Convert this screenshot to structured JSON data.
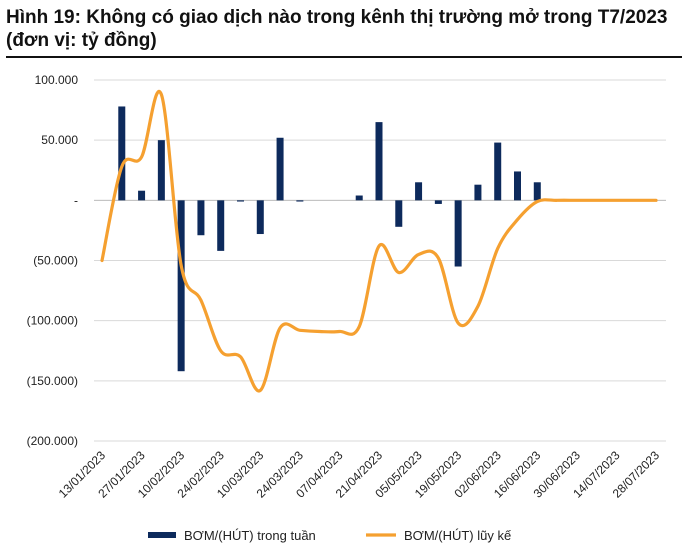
{
  "title": "Hình 19: Không có giao dịch nào trong kênh thị trường mở trong T7/2023 (đơn vị: tỷ đồng)",
  "chart_data": {
    "type": "bar+line",
    "ylim": [
      -200000,
      100000
    ],
    "y_ticks": [
      {
        "value": 100000,
        "label": "100.000"
      },
      {
        "value": 50000,
        "label": "50.000"
      },
      {
        "value": 0,
        "label": "-"
      },
      {
        "value": -50000,
        "label": "(50.000)"
      },
      {
        "value": -100000,
        "label": "(100.000)"
      },
      {
        "value": -150000,
        "label": "(150.000)"
      },
      {
        "value": -200000,
        "label": "(200.000)"
      }
    ],
    "x_ticks": [
      "13/01/2023",
      "27/01/2023",
      "10/02/2023",
      "24/02/2023",
      "10/03/2023",
      "24/03/2023",
      "07/04/2023",
      "21/04/2023",
      "05/05/2023",
      "19/05/2023",
      "02/06/2023",
      "16/06/2023",
      "30/06/2023",
      "14/07/2023",
      "28/07/2023"
    ],
    "grid": true,
    "legend_position": "bottom",
    "series": [
      {
        "name": "BƠM/(HÚT) trong tuần",
        "type": "bar",
        "color": "#0d2a5c",
        "points": [
          {
            "x": "20/01/2023",
            "y": 78000
          },
          {
            "x": "27/01/2023",
            "y": 8000
          },
          {
            "x": "03/02/2023",
            "y": 50000
          },
          {
            "x": "10/02/2023",
            "y": -142000
          },
          {
            "x": "17/02/2023",
            "y": -29000
          },
          {
            "x": "24/02/2023",
            "y": -42000
          },
          {
            "x": "03/03/2023",
            "y": -1000
          },
          {
            "x": "10/03/2023",
            "y": -28000
          },
          {
            "x": "17/03/2023",
            "y": 52000
          },
          {
            "x": "24/03/2023",
            "y": -1000
          },
          {
            "x": "14/04/2023",
            "y": 4000
          },
          {
            "x": "21/04/2023",
            "y": 65000
          },
          {
            "x": "28/04/2023",
            "y": -22000
          },
          {
            "x": "05/05/2023",
            "y": 15000
          },
          {
            "x": "12/05/2023",
            "y": -3000
          },
          {
            "x": "19/05/2023",
            "y": -55000
          },
          {
            "x": "26/05/2023",
            "y": 13000
          },
          {
            "x": "02/06/2023",
            "y": 48000
          },
          {
            "x": "09/06/2023",
            "y": 24000
          },
          {
            "x": "16/06/2023",
            "y": 15000
          }
        ]
      },
      {
        "name": "BƠM/(HÚT) lũy kế",
        "type": "line",
        "color": "#f5a030",
        "points": [
          {
            "x": "13/01/2023",
            "y": -50000
          },
          {
            "x": "20/01/2023",
            "y": 28000
          },
          {
            "x": "27/01/2023",
            "y": 36000
          },
          {
            "x": "03/02/2023",
            "y": 88000
          },
          {
            "x": "10/02/2023",
            "y": -54000
          },
          {
            "x": "17/02/2023",
            "y": -83000
          },
          {
            "x": "24/02/2023",
            "y": -125000
          },
          {
            "x": "03/03/2023",
            "y": -130000
          },
          {
            "x": "10/03/2023",
            "y": -158000
          },
          {
            "x": "17/03/2023",
            "y": -106000
          },
          {
            "x": "24/03/2023",
            "y": -108000
          },
          {
            "x": "31/03/2023",
            "y": -109000
          },
          {
            "x": "07/04/2023",
            "y": -109000
          },
          {
            "x": "14/04/2023",
            "y": -105000
          },
          {
            "x": "21/04/2023",
            "y": -38000
          },
          {
            "x": "28/04/2023",
            "y": -60000
          },
          {
            "x": "05/05/2023",
            "y": -45000
          },
          {
            "x": "12/05/2023",
            "y": -48000
          },
          {
            "x": "19/05/2023",
            "y": -102000
          },
          {
            "x": "26/05/2023",
            "y": -88000
          },
          {
            "x": "02/06/2023",
            "y": -40000
          },
          {
            "x": "09/06/2023",
            "y": -16000
          },
          {
            "x": "16/06/2023",
            "y": -1000
          },
          {
            "x": "23/06/2023",
            "y": 0
          },
          {
            "x": "30/06/2023",
            "y": 0
          },
          {
            "x": "07/07/2023",
            "y": 0
          },
          {
            "x": "14/07/2023",
            "y": 0
          },
          {
            "x": "21/07/2023",
            "y": 0
          },
          {
            "x": "28/07/2023",
            "y": 0
          }
        ]
      }
    ]
  }
}
